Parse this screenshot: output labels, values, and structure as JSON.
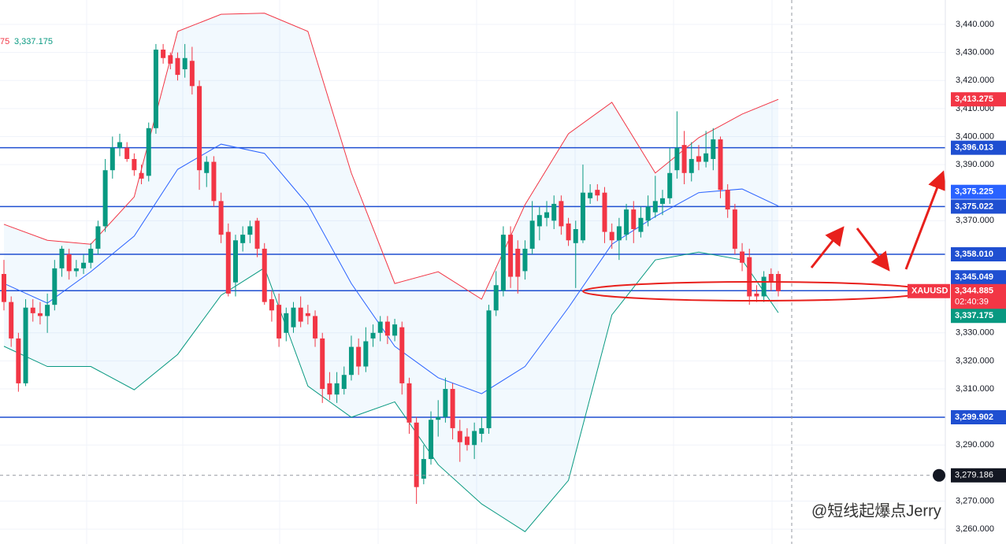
{
  "chart_data": {
    "type": "candlestick",
    "symbol": "XAUUSD",
    "countdown": "02:40:39",
    "legend_partial": [
      {
        "text": "75",
        "color": "#f23645"
      },
      {
        "text": "3,337.175",
        "color": "#089981"
      }
    ],
    "up_color": "#089981",
    "down_color": "#f23645",
    "ylim": [
      3254.7,
      3448.7
    ],
    "yticks": [
      {
        "value": 3440,
        "label": "3,440.000"
      },
      {
        "value": 3430,
        "label": "3,430.000"
      },
      {
        "value": 3420,
        "label": "3,420.000"
      },
      {
        "value": 3410,
        "label": "3,410.000"
      },
      {
        "value": 3400,
        "label": "3,400.000"
      },
      {
        "value": 3390,
        "label": "3,390.000"
      },
      {
        "value": 3370,
        "label": "3,370.000"
      },
      {
        "value": 3330,
        "label": "3,330.000"
      },
      {
        "value": 3320,
        "label": "3,320.000"
      },
      {
        "value": 3310,
        "label": "3,310.000"
      },
      {
        "value": 3290,
        "label": "3,290.000"
      },
      {
        "value": 3270,
        "label": "3,270.000"
      },
      {
        "value": 3260,
        "label": "3,260.000"
      }
    ],
    "grid": true,
    "ohlc": [
      [
        3351,
        3356,
        3338,
        3341
      ],
      [
        3341,
        3343,
        3325,
        3328
      ],
      [
        3328,
        3330,
        3309,
        3312
      ],
      [
        3312,
        3342,
        3311,
        3339
      ],
      [
        3339,
        3342,
        3334,
        3337
      ],
      [
        3337,
        3341,
        3333,
        3336
      ],
      [
        3336,
        3344,
        3330,
        3340
      ],
      [
        3340,
        3356,
        3338,
        3353
      ],
      [
        3353,
        3361,
        3350,
        3360
      ],
      [
        3358,
        3360,
        3349,
        3352
      ],
      [
        3352,
        3356,
        3350,
        3353
      ],
      [
        3353,
        3358,
        3351,
        3355
      ],
      [
        3355,
        3362,
        3353,
        3360
      ],
      [
        3360,
        3370,
        3358,
        3368
      ],
      [
        3368,
        3392,
        3366,
        3388
      ],
      [
        3388,
        3400,
        3385,
        3396
      ],
      [
        3396,
        3401,
        3393,
        3398
      ],
      [
        3396,
        3398,
        3391,
        3392
      ],
      [
        3392,
        3394,
        3386,
        3388
      ],
      [
        3387,
        3390,
        3383,
        3385
      ],
      [
        3386,
        3405,
        3384,
        3403
      ],
      [
        3403,
        3433,
        3401,
        3431
      ],
      [
        3431,
        3433,
        3426,
        3428
      ],
      [
        3429,
        3430,
        3424,
        3426
      ],
      [
        3428,
        3430,
        3420,
        3422
      ],
      [
        3424,
        3433,
        3421,
        3428
      ],
      [
        3427,
        3432,
        3415,
        3418
      ],
      [
        3418,
        3420,
        3381,
        3388
      ],
      [
        3387,
        3393,
        3382,
        3391
      ],
      [
        3391,
        3393,
        3375,
        3377
      ],
      [
        3377,
        3380,
        3362,
        3365
      ],
      [
        3366,
        3369,
        3343,
        3344
      ],
      [
        3348,
        3365,
        3343,
        3363
      ],
      [
        3362,
        3368,
        3359,
        3365
      ],
      [
        3365,
        3370,
        3362,
        3368
      ],
      [
        3370,
        3371,
        3357,
        3360
      ],
      [
        3360,
        3362,
        3340,
        3341
      ],
      [
        3342,
        3345,
        3334,
        3338
      ],
      [
        3340,
        3344,
        3325,
        3328
      ],
      [
        3330,
        3339,
        3327,
        3337
      ],
      [
        3332,
        3341,
        3330,
        3339
      ],
      [
        3339,
        3343,
        3332,
        3334
      ],
      [
        3337,
        3340,
        3333,
        3336
      ],
      [
        3336,
        3338,
        3325,
        3328
      ],
      [
        3328,
        3330,
        3305,
        3310
      ],
      [
        3312,
        3316,
        3306,
        3308
      ],
      [
        3308,
        3316,
        3305,
        3312
      ],
      [
        3310,
        3318,
        3308,
        3315
      ],
      [
        3315,
        3329,
        3313,
        3325
      ],
      [
        3325,
        3328,
        3315,
        3318
      ],
      [
        3318,
        3332,
        3316,
        3327
      ],
      [
        3328,
        3333,
        3325,
        3330
      ],
      [
        3330,
        3336,
        3327,
        3334
      ],
      [
        3334,
        3336,
        3326,
        3329
      ],
      [
        3329,
        3335,
        3327,
        3333
      ],
      [
        3332,
        3334,
        3308,
        3312
      ],
      [
        3312,
        3314,
        3294,
        3298
      ],
      [
        3298,
        3300,
        3269,
        3275
      ],
      [
        3278,
        3290,
        3276,
        3285
      ],
      [
        3285,
        3302,
        3283,
        3299
      ],
      [
        3299,
        3306,
        3293,
        3300
      ],
      [
        3300,
        3314,
        3298,
        3310
      ],
      [
        3310,
        3312,
        3292,
        3296
      ],
      [
        3295,
        3299,
        3284,
        3291
      ],
      [
        3293,
        3296,
        3288,
        3290
      ],
      [
        3290,
        3298,
        3285,
        3295
      ],
      [
        3294,
        3300,
        3291,
        3296
      ],
      [
        3296,
        3340,
        3294,
        3338
      ],
      [
        3338,
        3352,
        3336,
        3347
      ],
      [
        3345,
        3368,
        3343,
        3365
      ],
      [
        3365,
        3368,
        3346,
        3350
      ],
      [
        3360,
        3363,
        3344,
        3350
      ],
      [
        3352,
        3363,
        3349,
        3360
      ],
      [
        3360,
        3377,
        3358,
        3370
      ],
      [
        3368,
        3375,
        3363,
        3372
      ],
      [
        3371,
        3377,
        3368,
        3373
      ],
      [
        3370,
        3379,
        3367,
        3376
      ],
      [
        3377,
        3379,
        3365,
        3368
      ],
      [
        3369,
        3371,
        3361,
        3363
      ],
      [
        3362,
        3370,
        3346,
        3367
      ],
      [
        3363,
        3390,
        3362,
        3380
      ],
      [
        3378,
        3383,
        3376,
        3380
      ],
      [
        3381,
        3383,
        3377,
        3379
      ],
      [
        3380,
        3382,
        3362,
        3366
      ],
      [
        3366,
        3369,
        3360,
        3363
      ],
      [
        3363,
        3371,
        3356,
        3368
      ],
      [
        3365,
        3376,
        3363,
        3374
      ],
      [
        3374,
        3377,
        3362,
        3367
      ],
      [
        3366,
        3375,
        3364,
        3371
      ],
      [
        3370,
        3379,
        3368,
        3375
      ],
      [
        3373,
        3386,
        3371,
        3377
      ],
      [
        3376,
        3381,
        3372,
        3378
      ],
      [
        3378,
        3396,
        3376,
        3387
      ],
      [
        3388,
        3409,
        3385,
        3396
      ],
      [
        3397,
        3402,
        3383,
        3387
      ],
      [
        3387,
        3398,
        3384,
        3392
      ],
      [
        3393,
        3397,
        3388,
        3391
      ],
      [
        3391,
        3402,
        3389,
        3394
      ],
      [
        3392,
        3403,
        3388,
        3399
      ],
      [
        3399,
        3400,
        3378,
        3381
      ],
      [
        3381,
        3383,
        3371,
        3374
      ],
      [
        3374,
        3376,
        3358,
        3360
      ],
      [
        3359,
        3362,
        3352,
        3355
      ],
      [
        3357,
        3360,
        3340,
        3343
      ],
      [
        3344,
        3347,
        3341,
        3343
      ],
      [
        3343,
        3352,
        3341,
        3350
      ],
      [
        3351,
        3353,
        3345,
        3348
      ],
      [
        3351,
        3352,
        3343,
        3344.885
      ]
    ],
    "bands": {
      "x": [
        0,
        6,
        12,
        18,
        24,
        30,
        36,
        42,
        48,
        54,
        60,
        66,
        72,
        78,
        84,
        90,
        96,
        102,
        107
      ],
      "series": [
        {
          "color": "#f23645",
          "values": [
            3368.7,
            3363,
            3361.6,
            3378.5,
            3437.5,
            3443.6,
            3444,
            3437.5,
            3387,
            3347.6,
            3351.8,
            3342,
            3375.7,
            3401,
            3412.2,
            3387,
            3399.6,
            3408,
            3413.275
          ]
        },
        {
          "color": "#2962ff",
          "values": [
            3347.6,
            3340.6,
            3351.8,
            3364.5,
            3388.3,
            3397.3,
            3394,
            3375.7,
            3347.6,
            3325.2,
            3314,
            3308.3,
            3318,
            3339,
            3361.6,
            3371.5,
            3380,
            3381.3,
            3375.225
          ]
        },
        {
          "color": "#089981",
          "values": [
            3325.2,
            3318,
            3318,
            3309.7,
            3322.3,
            3343.4,
            3353.2,
            3311,
            3299.9,
            3305.4,
            3283,
            3269,
            3259.1,
            3277.4,
            3336.4,
            3356,
            3358.8,
            3356,
            3337.175
          ]
        }
      ]
    },
    "levels": {
      "color": "#1f4fd1",
      "values": [
        3396.013,
        3375.022,
        3358.01,
        3345.049,
        3299.902
      ]
    },
    "badges": [
      {
        "value": 3413.275,
        "label": "3,413.275",
        "color": "#f23645"
      },
      {
        "value": 3396.013,
        "label": "3,396.013",
        "color": "#1f4fd1"
      },
      {
        "value": 3375.225,
        "label": "3,375.225",
        "color": "#2962ff"
      },
      {
        "value": 3375.022,
        "label": "3,375.022",
        "color": "#1f4fd1"
      },
      {
        "value": 3358.01,
        "label": "3,358.010",
        "color": "#1f4fd1"
      },
      {
        "value": 3345.049,
        "label": "3,345.049",
        "color": "#1f4fd1"
      },
      {
        "value": 3344.885,
        "label": "3,344.885",
        "color": "#f23645"
      },
      {
        "value": 3337.175,
        "label": "3,337.175",
        "color": "#089981"
      },
      {
        "value": 3299.902,
        "label": "3,299.902",
        "color": "#1f4fd1"
      }
    ],
    "crosshair": {
      "value": 3279.186,
      "label": "3,279.186"
    },
    "watermark": "@短线起爆点Jerry"
  }
}
